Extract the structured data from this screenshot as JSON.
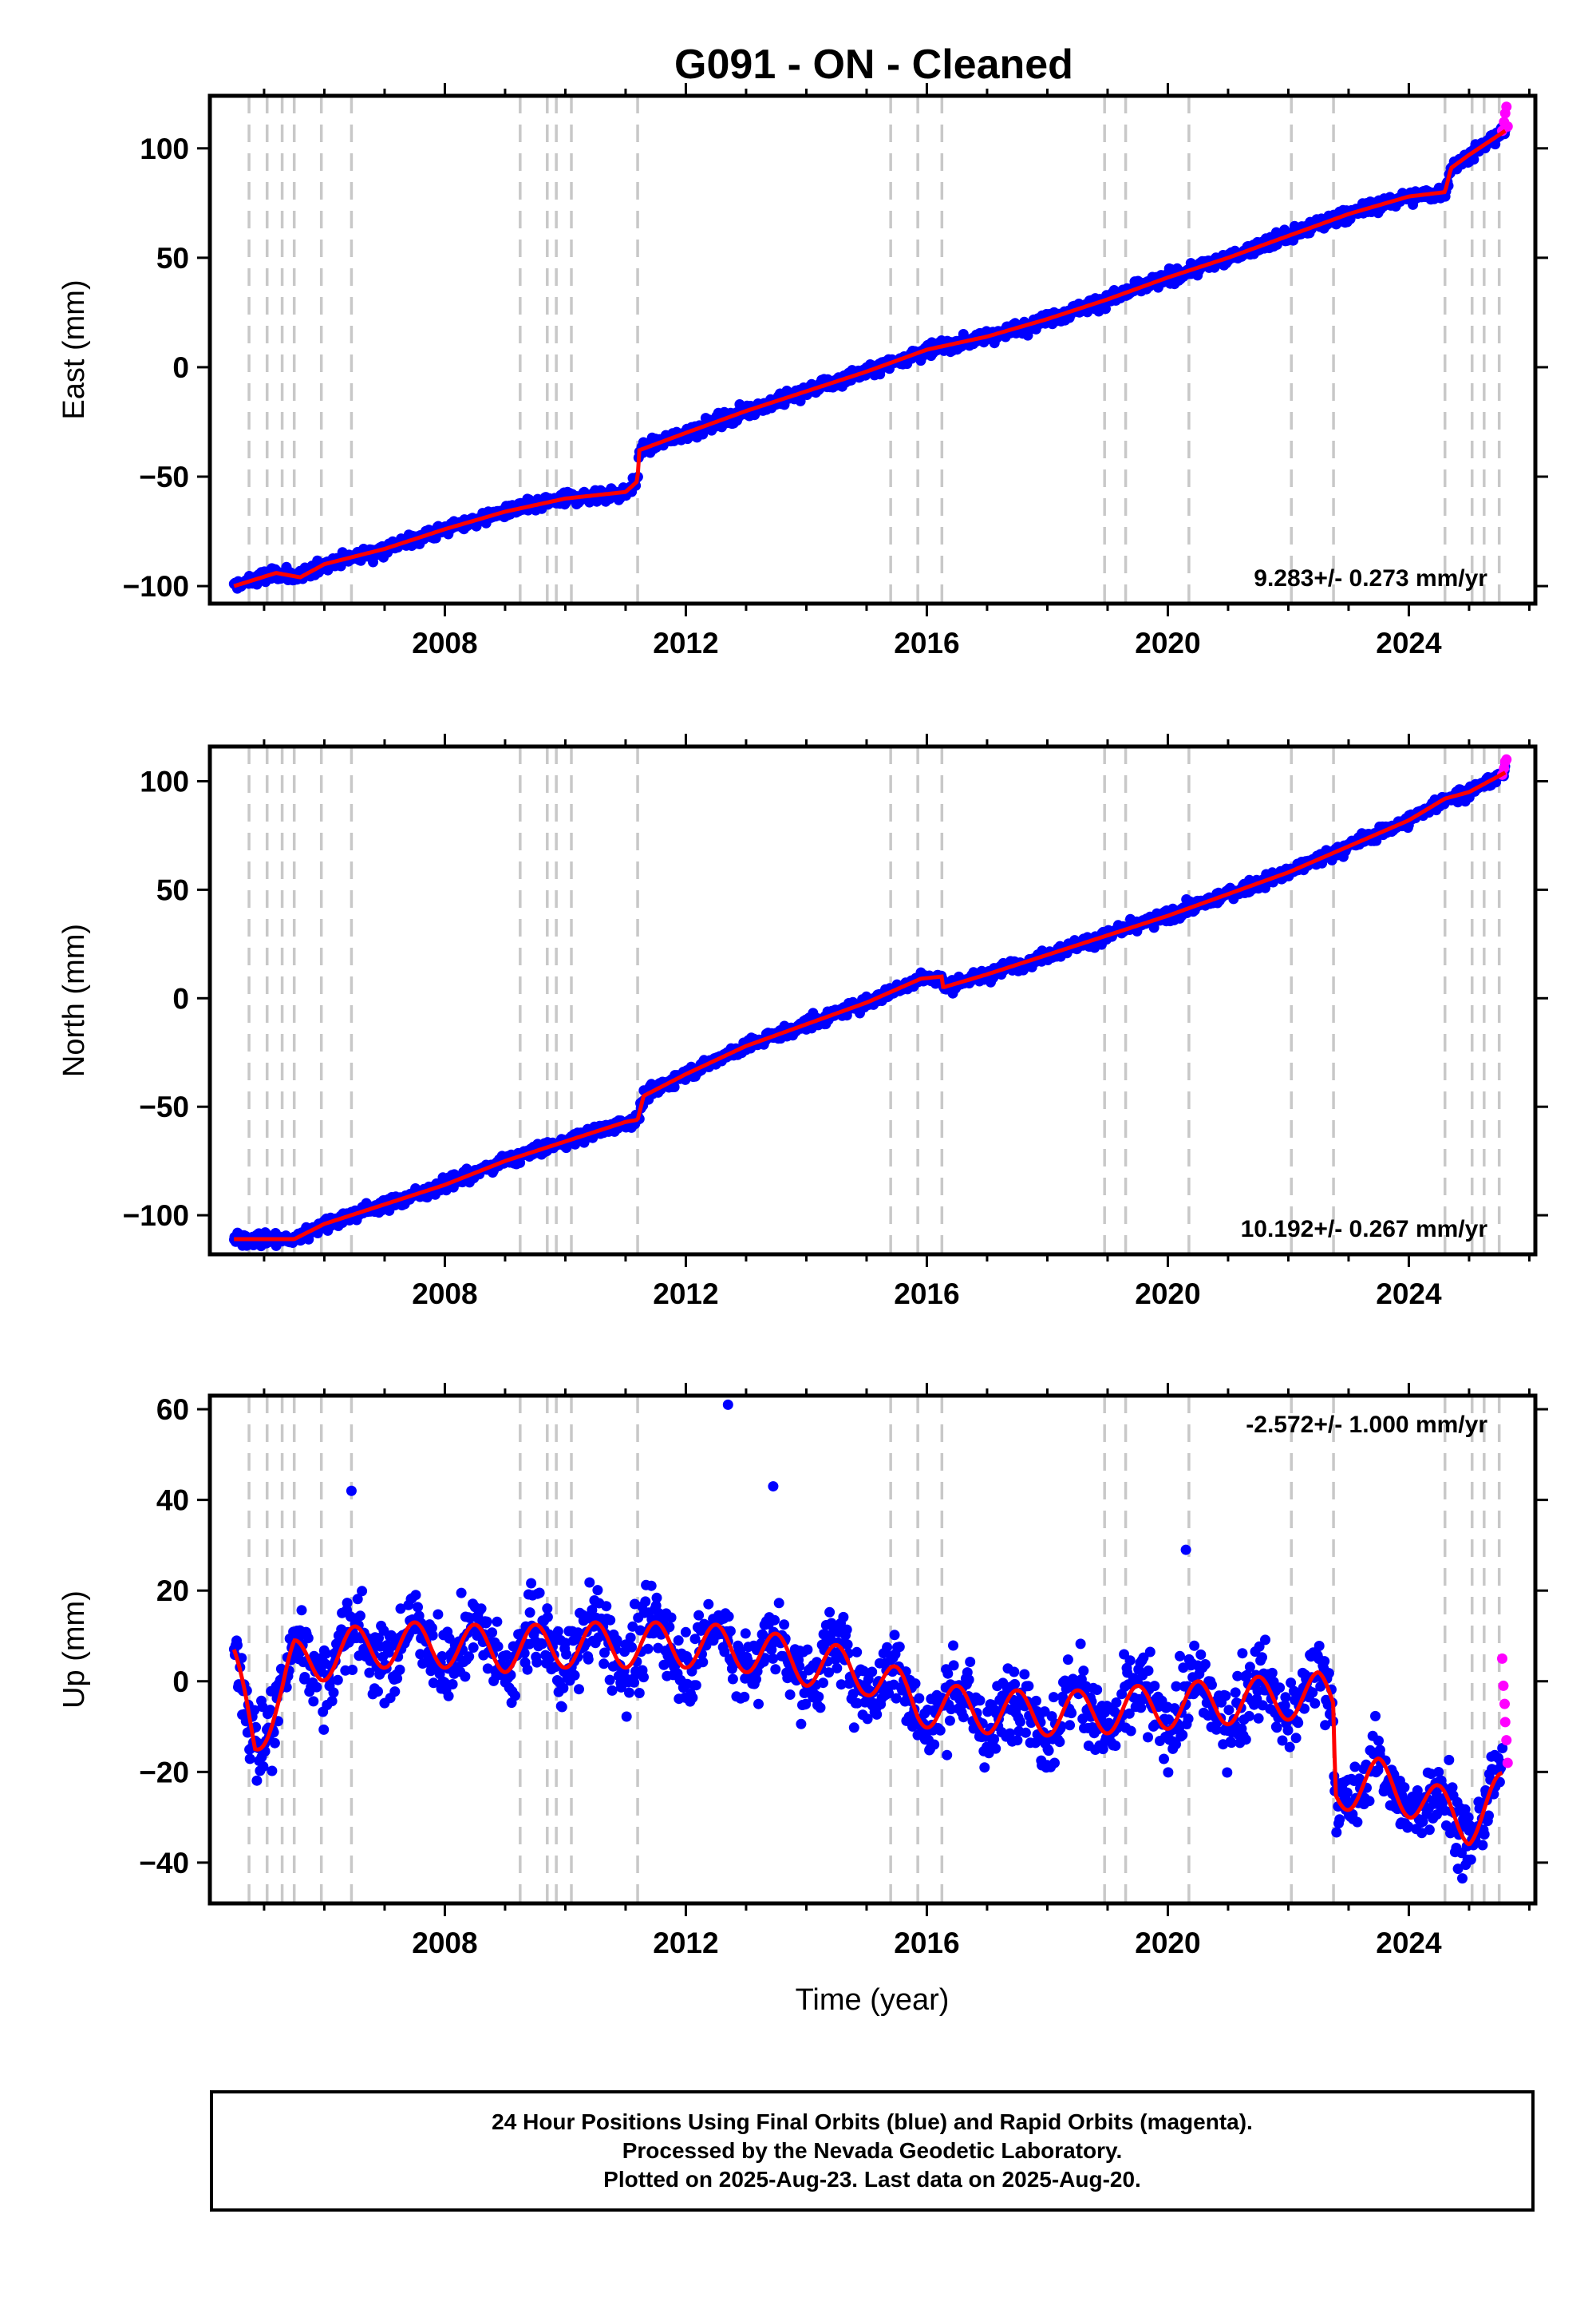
{
  "chart_data": {
    "title": "G091  - ON - Cleaned",
    "xlabel": "Time (year)",
    "xlim": [
      2004.1,
      2026.1
    ],
    "xticks": [
      2008,
      2012,
      2016,
      2020,
      2024
    ],
    "xtick_labels": [
      "2008",
      "2012",
      "2016",
      "2020",
      "2024"
    ],
    "equipment_change_epochs": [
      2004.75,
      2005.05,
      2005.3,
      2005.5,
      2005.95,
      2006.45,
      2009.25,
      2009.7,
      2009.85,
      2010.1,
      2011.2,
      2015.4,
      2015.85,
      2016.25,
      2018.95,
      2019.3,
      2020.35,
      2022.05,
      2022.75,
      2024.6,
      2025.05,
      2025.25,
      2025.5
    ],
    "colors": {
      "final": "#0000ff",
      "rapid": "#ff00ff",
      "model": "#ff0000",
      "event_line": "#c8c8c8"
    },
    "panels": [
      {
        "type": "scatter",
        "component": "East",
        "ylabel": "East (mm)",
        "ylim": [
          -108,
          124
        ],
        "yticks": [
          -100,
          -50,
          0,
          50,
          100
        ],
        "ytick_labels": [
          "−100",
          "−50",
          "0",
          "50",
          "100"
        ],
        "rate_label": "9.283+/- 0.273 mm/yr",
        "rate_position": "bottom-right",
        "model": {
          "x": [
            2004.5,
            2005.2,
            2005.6,
            2006.0,
            2007.0,
            2008.0,
            2009.0,
            2010.0,
            2011.0,
            2011.2,
            2011.22,
            2012.0,
            2013.0,
            2014.0,
            2015.0,
            2016.0,
            2017.0,
            2018.0,
            2019.0,
            2020.0,
            2021.0,
            2022.0,
            2023.0,
            2024.0,
            2024.6,
            2024.7,
            2025.0,
            2025.6
          ],
          "y": [
            -100,
            -94,
            -96,
            -90,
            -83,
            -74,
            -66,
            -60,
            -57,
            -52,
            -38,
            -30,
            -20,
            -11,
            -2,
            8,
            14,
            22,
            31,
            41,
            50,
            60,
            70,
            78,
            80,
            91,
            97,
            108
          ]
        },
        "noise_mm": 2.6,
        "rapid_points": {
          "x": [
            2025.55,
            2025.58,
            2025.6,
            2025.62,
            2025.64
          ],
          "y": [
            108,
            112,
            116,
            119,
            110
          ]
        }
      },
      {
        "type": "scatter",
        "component": "North",
        "ylabel": "North (mm)",
        "ylim": [
          -118,
          116
        ],
        "yticks": [
          -100,
          -50,
          0,
          50,
          100
        ],
        "ytick_labels": [
          "−100",
          "−50",
          "0",
          "50",
          "100"
        ],
        "rate_label": "10.192+/- 0.267 mm/yr",
        "rate_position": "bottom-right",
        "model": {
          "x": [
            2004.5,
            2005.5,
            2006.0,
            2007.0,
            2008.0,
            2009.0,
            2010.0,
            2011.0,
            2011.2,
            2011.3,
            2012.0,
            2013.0,
            2014.0,
            2015.0,
            2015.9,
            2016.25,
            2016.27,
            2017.0,
            2018.0,
            2019.0,
            2020.0,
            2021.0,
            2022.0,
            2023.0,
            2024.0,
            2024.6,
            2025.0,
            2025.6
          ],
          "y": [
            -111,
            -111,
            -104,
            -95,
            -86,
            -75,
            -66,
            -57,
            -56,
            -45,
            -35,
            -22,
            -12,
            -2,
            9,
            10,
            5,
            11,
            20,
            29,
            38,
            48,
            58,
            70,
            82,
            92,
            95,
            104
          ]
        },
        "noise_mm": 2.4,
        "rapid_points": {
          "x": [
            2025.55,
            2025.58,
            2025.6,
            2025.62
          ],
          "y": [
            103,
            106,
            109,
            110
          ]
        }
      },
      {
        "type": "scatter",
        "component": "Up",
        "ylabel": "Up (mm)",
        "ylim": [
          -49,
          63
        ],
        "yticks": [
          -40,
          -20,
          0,
          20,
          40,
          60
        ],
        "ytick_labels": [
          "−40",
          "−20",
          "0",
          "20",
          "40",
          "60"
        ],
        "rate_label": "-2.572+/- 1.000 mm/yr",
        "rate_position": "top-right",
        "model": {
          "x": [
            2004.5,
            2004.7,
            2004.85,
            2005.05,
            2005.3,
            2005.5,
            2005.95,
            2006.45,
            2007.0,
            2008.0,
            2009.0,
            2010.0,
            2011.0,
            2012.0,
            2013.0,
            2014.0,
            2015.0,
            2015.4,
            2015.85,
            2016.5,
            2017.5,
            2018.5,
            2019.5,
            2020.5,
            2021.5,
            2022.5,
            2022.75,
            2022.78,
            2023.5,
            2024.5,
            2025.0,
            2025.55
          ],
          "y": [
            2,
            -5,
            -12,
            -8,
            -3,
            4,
            5,
            7,
            8,
            8,
            7,
            8,
            8,
            8,
            7,
            4,
            2,
            -1,
            -5,
            -6,
            -7,
            -7,
            -6,
            -5,
            -4,
            -3,
            -5,
            -24,
            -22,
            -28,
            -31,
            -25
          ],
          "seasonal_amplitude_mm": 5
        },
        "noise_mm": 7,
        "outliers": {
          "x": [
            2012.7,
            2006.45,
            2013.45,
            2020.3
          ],
          "y": [
            61,
            42,
            43,
            29
          ]
        },
        "rapid_points": {
          "x": [
            2025.55,
            2025.57,
            2025.59,
            2025.6,
            2025.62,
            2025.64
          ],
          "y": [
            5,
            -1,
            -5,
            -9,
            -13,
            -18
          ]
        }
      }
    ]
  },
  "footer": {
    "line1": "24 Hour Positions Using Final Orbits (blue) and Rapid Orbits (magenta).",
    "line2": "Processed by the Nevada Geodetic Laboratory.",
    "line3": "Plotted on 2025-Aug-23. Last data on 2025-Aug-20."
  }
}
